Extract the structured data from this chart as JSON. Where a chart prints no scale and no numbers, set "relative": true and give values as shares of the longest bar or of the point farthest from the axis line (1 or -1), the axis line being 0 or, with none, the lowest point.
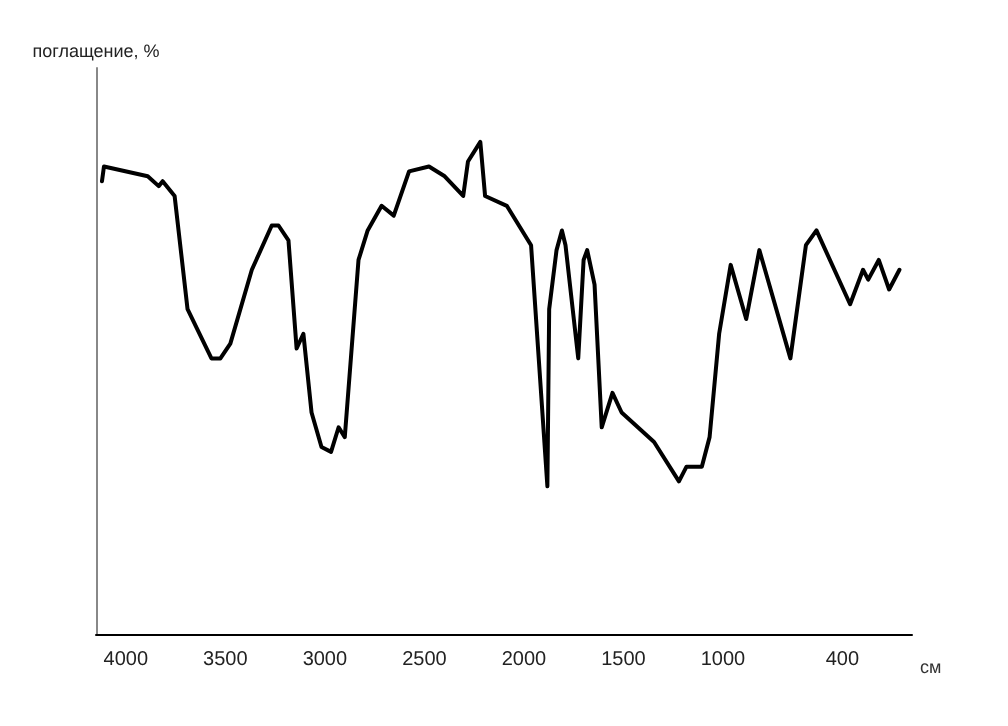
{
  "chart_data": {
    "type": "line",
    "ylabel": "поглащение, %",
    "xlabel": "см",
    "relative": true,
    "xlim": [
      4150,
      50
    ],
    "xticks": [
      4000,
      3500,
      3000,
      2500,
      2000,
      1500,
      1000,
      400
    ],
    "grid": false,
    "marker": "none",
    "line_style": "solid",
    "x": [
      4120,
      4110,
      3890,
      3835,
      3815,
      3755,
      3690,
      3570,
      3525,
      3475,
      3367,
      3267,
      3233,
      3183,
      3142,
      3108,
      3067,
      3017,
      2969,
      2931,
      2900,
      2831,
      2785,
      2715,
      2654,
      2577,
      2477,
      2398,
      2305,
      2281,
      2219,
      2195,
      2086,
      1964,
      1882,
      1873,
      1836,
      1809,
      1791,
      1727,
      1700,
      1682,
      1645,
      1609,
      1555,
      1509,
      1346,
      1221,
      1183,
      1106,
      1067,
      1019,
      961,
      883,
      817,
      661,
      583,
      530,
      361,
      296,
      270,
      217,
      165,
      113
    ],
    "series": [
      {
        "color": "#000000",
        "values": [
          0.92,
          0.95,
          0.93,
          0.91,
          0.92,
          0.89,
          0.66,
          0.56,
          0.56,
          0.59,
          0.74,
          0.83,
          0.83,
          0.8,
          0.58,
          0.61,
          0.45,
          0.38,
          0.37,
          0.42,
          0.4,
          0.76,
          0.82,
          0.87,
          0.85,
          0.94,
          0.95,
          0.93,
          0.89,
          0.96,
          1.0,
          0.89,
          0.87,
          0.79,
          0.3,
          0.66,
          0.78,
          0.82,
          0.79,
          0.56,
          0.76,
          0.78,
          0.71,
          0.42,
          0.49,
          0.45,
          0.39,
          0.31,
          0.34,
          0.34,
          0.4,
          0.61,
          0.75,
          0.64,
          0.78,
          0.56,
          0.79,
          0.82,
          0.67,
          0.74,
          0.72,
          0.76,
          0.7,
          0.74
        ]
      }
    ]
  }
}
